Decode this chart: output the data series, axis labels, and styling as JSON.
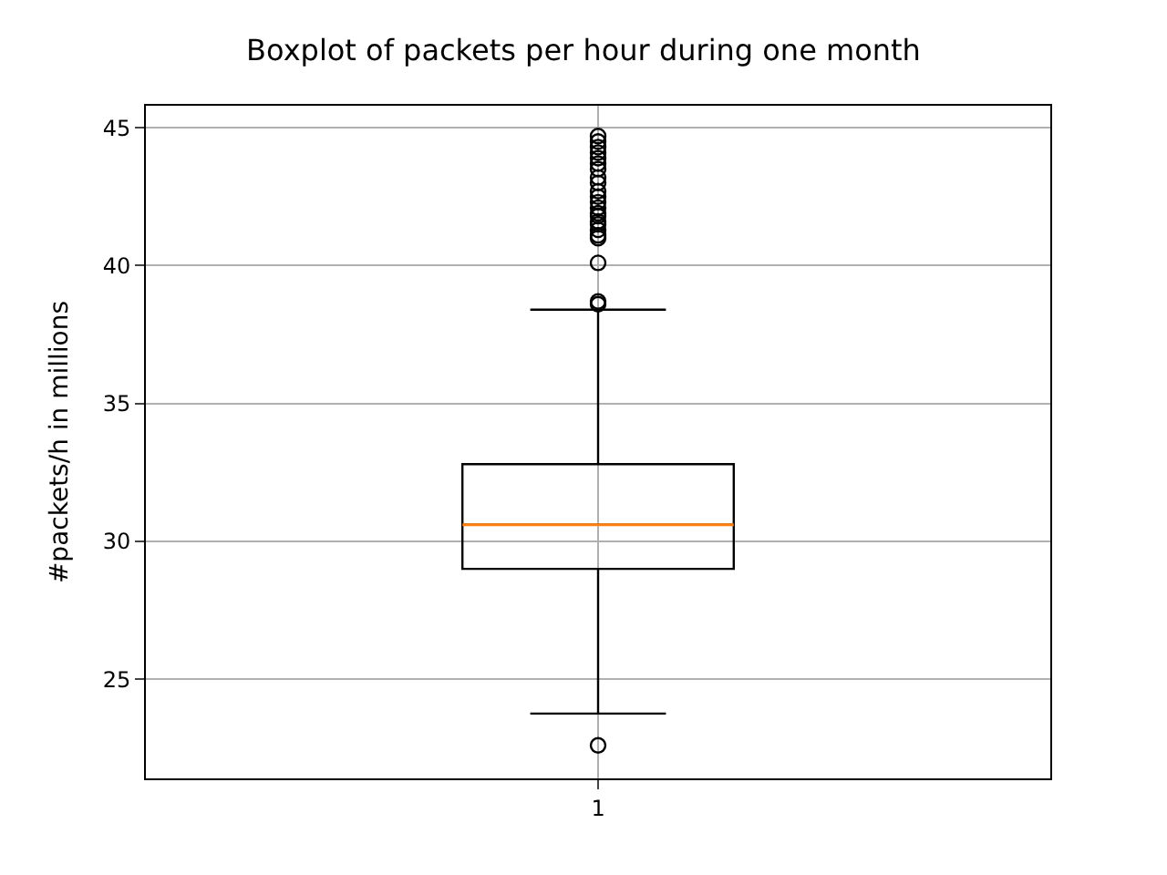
{
  "chart_data": {
    "type": "box",
    "title": "Boxplot of packets per hour during one month",
    "ylabel": "#packets/h in millions",
    "categories": [
      "1"
    ],
    "ylim": [
      21.4,
      45.8
    ],
    "yticks": [
      25,
      30,
      35,
      40,
      45
    ],
    "grid": true,
    "series": [
      {
        "color": "#000000",
        "boxes": [
          {
            "low": 23.75,
            "q1": 29.0,
            "median": 30.6,
            "q3": 32.8,
            "high": 38.4,
            "outliers": [
              44.7,
              44.5,
              44.3,
              44.1,
              43.9,
              43.7,
              43.5,
              43.2,
              43.0,
              42.7,
              42.5,
              42.3,
              42.1,
              41.9,
              41.8,
              41.6,
              41.5,
              41.3,
              41.1,
              41.0,
              40.1,
              38.7,
              38.6,
              22.6
            ]
          }
        ]
      }
    ]
  }
}
